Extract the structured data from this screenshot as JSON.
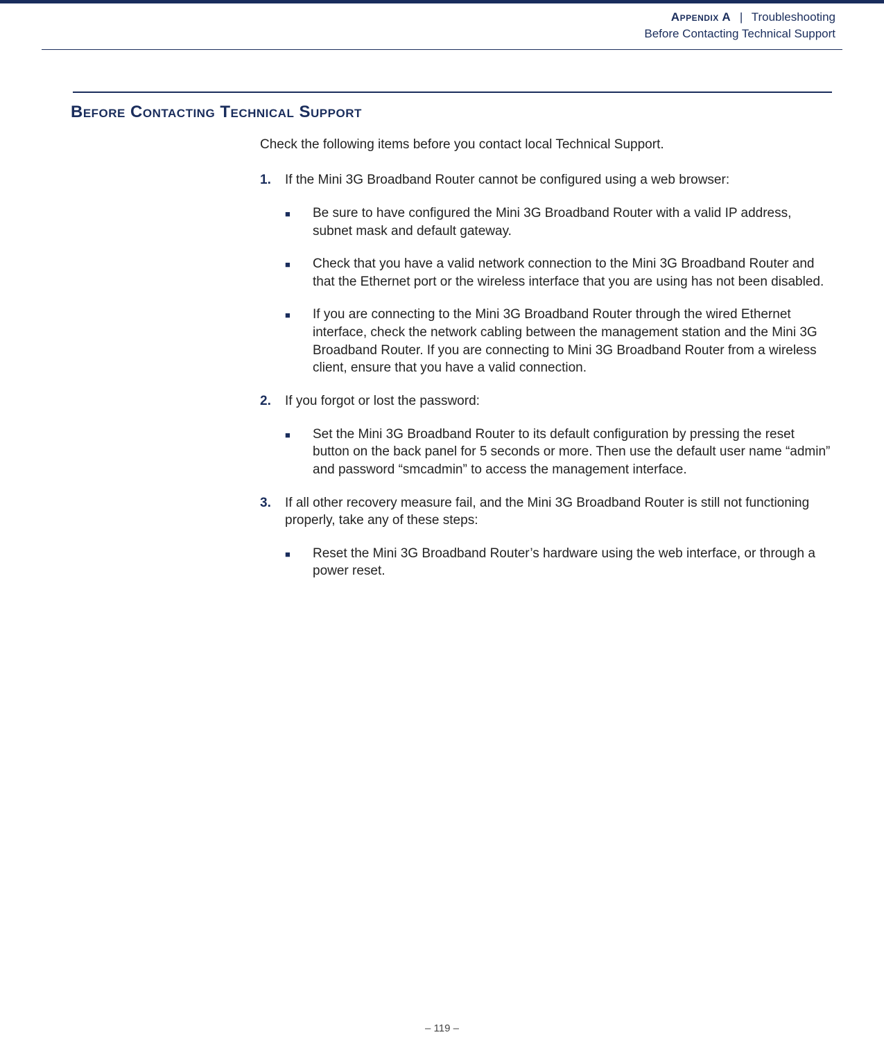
{
  "colors": {
    "brand": "#1a2d5c",
    "text": "#222222",
    "background": "#ffffff"
  },
  "typography": {
    "family": "Verdana",
    "body_size_pt": 14,
    "heading_size_pt": 18
  },
  "header": {
    "appendix_label": "Appendix A",
    "separator": "|",
    "chapter_title": "Troubleshooting",
    "subtitle": "Before Contacting Technical Support"
  },
  "section": {
    "heading": "Before Contacting Technical Support",
    "intro": "Check the following items before you contact local Technical Support."
  },
  "items": [
    {
      "num": "1.",
      "text": "If the Mini 3G Broadband Router cannot be configured using a web browser:",
      "sub": [
        "Be sure to have configured the Mini 3G Broadband Router with a valid IP address, subnet mask and default gateway.",
        "Check that you have a valid network connection to the Mini 3G Broadband Router and that the Ethernet port or the wireless interface that you are using has not been disabled.",
        "If you are connecting to the Mini 3G Broadband Router through the wired Ethernet interface, check the network cabling between the management station and the Mini 3G Broadband Router. If you are connecting to Mini 3G Broadband Router from a wireless client, ensure that you have a valid connection."
      ]
    },
    {
      "num": "2.",
      "text": "If you forgot or lost the password:",
      "sub": [
        "Set the Mini 3G Broadband Router to its default configuration by pressing the reset button on the back panel for 5 seconds or more. Then use the default user name “admin” and password “smcadmin” to access the management interface."
      ]
    },
    {
      "num": "3.",
      "text": "If all other recovery measure fail, and the Mini 3G Broadband Router is still not functioning properly, take any of these steps:",
      "sub": [
        "Reset the Mini 3G Broadband Router’s hardware using the web interface, or through a power reset."
      ]
    }
  ],
  "footer": {
    "page_number": "–  119  –"
  }
}
